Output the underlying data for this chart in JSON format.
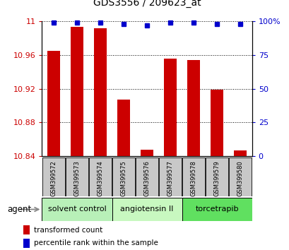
{
  "title": "GDS3556 / 209623_at",
  "samples": [
    "GSM399572",
    "GSM399573",
    "GSM399574",
    "GSM399575",
    "GSM399576",
    "GSM399577",
    "GSM399578",
    "GSM399579",
    "GSM399580"
  ],
  "red_values": [
    10.965,
    10.993,
    10.992,
    10.907,
    10.848,
    10.956,
    10.954,
    10.919,
    10.847
  ],
  "blue_values": [
    99,
    99,
    99,
    98,
    97,
    99,
    99,
    98,
    98
  ],
  "ylim_left": [
    10.84,
    11.0
  ],
  "ylim_right": [
    0,
    100
  ],
  "yticks_left": [
    10.84,
    10.88,
    10.92,
    10.96,
    11.0
  ],
  "yticks_right": [
    0,
    25,
    50,
    75,
    100
  ],
  "groups": [
    {
      "label": "solvent control",
      "indices": [
        0,
        1,
        2
      ],
      "color": "#b8f0b8"
    },
    {
      "label": "angiotensin II",
      "indices": [
        3,
        4,
        5
      ],
      "color": "#c8f8c0"
    },
    {
      "label": "torcetrapib",
      "indices": [
        6,
        7,
        8
      ],
      "color": "#60e060"
    }
  ],
  "bar_color": "#cc0000",
  "dot_color": "#0000cc",
  "agent_label": "agent",
  "legend_red": "transformed count",
  "legend_blue": "percentile rank within the sample",
  "tick_bg": "#c8c8c8",
  "bar_width": 0.55
}
